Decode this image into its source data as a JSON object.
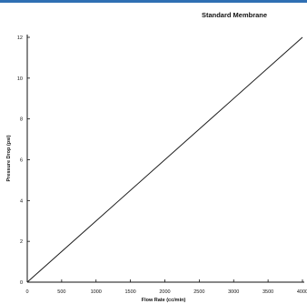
{
  "chart_data": {
    "type": "line",
    "title": "Standard Membrane",
    "xlabel": "Flow Rate (cc/min)",
    "ylabel": "Pressure Drop (psi)",
    "xlim": [
      0,
      4000
    ],
    "ylim": [
      0,
      12
    ],
    "xticks": [
      0,
      500,
      1000,
      1500,
      2000,
      2500,
      3000,
      3500,
      4000
    ],
    "yticks": [
      0,
      2,
      4,
      6,
      8,
      10,
      12
    ],
    "grid": false,
    "legend": "none",
    "series": [
      {
        "x": [
          0,
          4000
        ],
        "y": [
          0,
          12
        ],
        "color": "#1a1a1a"
      }
    ]
  }
}
